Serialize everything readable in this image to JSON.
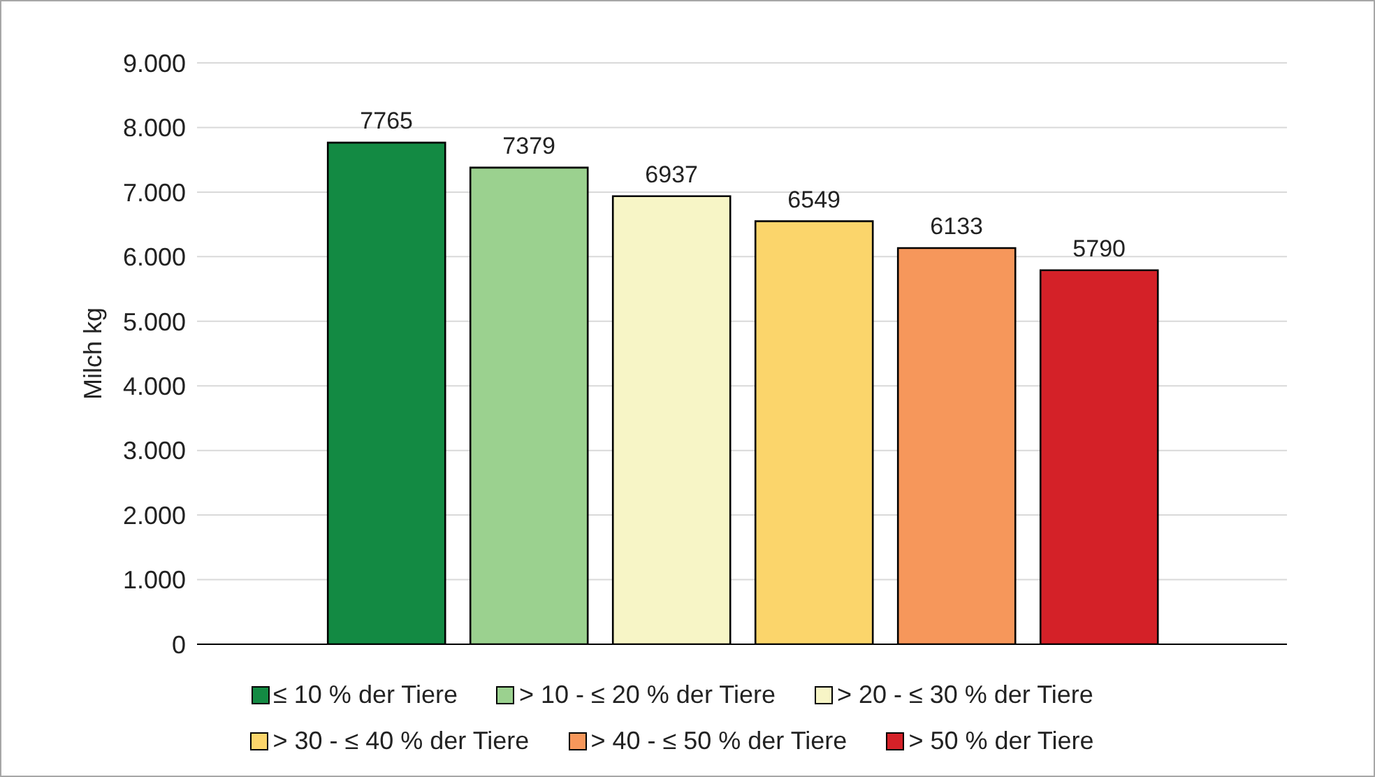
{
  "chart_data": {
    "type": "bar",
    "ylabel": "Milch kg",
    "categories": [
      null
    ],
    "series": [
      {
        "name": "≤ 10 % der Tiere",
        "color": "#138a43",
        "values": [
          7765
        ]
      },
      {
        "name": "> 10 - ≤ 20 % der Tiere",
        "color": "#9bd18f",
        "values": [
          7379
        ]
      },
      {
        "name": "> 20 - ≤ 30 % der Tiere",
        "color": "#f7f5c6",
        "values": [
          6937
        ]
      },
      {
        "name": "> 30 - ≤ 40 % der Tiere",
        "color": "#fbd56b",
        "values": [
          6549
        ]
      },
      {
        "name": "> 40 - ≤ 50 % der Tiere",
        "color": "#f6975b",
        "values": [
          6133
        ]
      },
      {
        "name": "> 50 % der Tiere",
        "color": "#d42128",
        "values": [
          5790
        ]
      }
    ],
    "ylim": [
      0,
      9000
    ],
    "yticks": [
      0,
      {
        "value": 1000,
        "label": "1.000"
      },
      {
        "value": 2000,
        "label": "2.000"
      },
      {
        "value": 3000,
        "label": "3.000"
      },
      {
        "value": 4000,
        "label": "4.000"
      },
      {
        "value": 5000,
        "label": "5.000"
      },
      {
        "value": 6000,
        "label": "6.000"
      },
      {
        "value": 7000,
        "label": "7.000"
      },
      {
        "value": 8000,
        "label": "8.000"
      },
      {
        "value": 9000,
        "label": "9.000"
      }
    ],
    "grid": "y",
    "legend": "bottom",
    "data_labels": true
  }
}
